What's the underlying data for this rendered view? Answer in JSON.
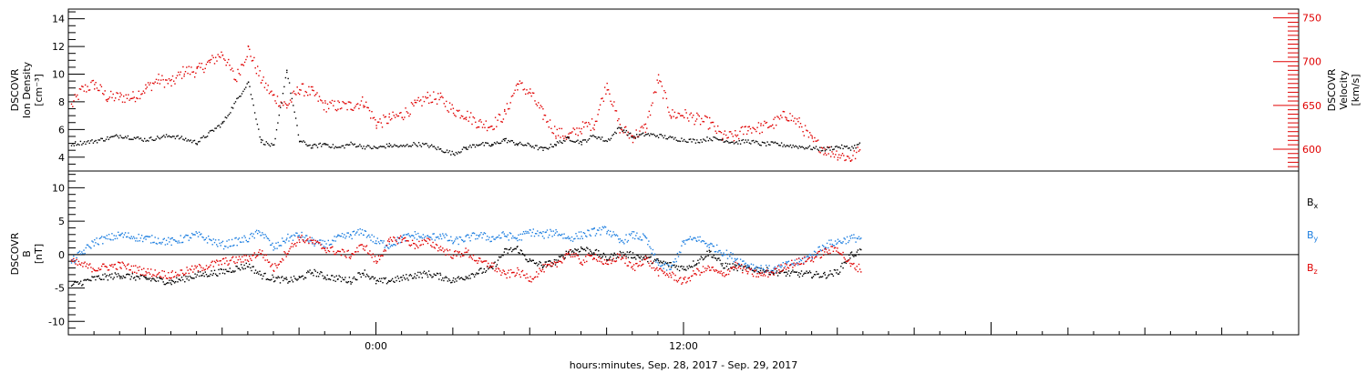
{
  "chart_data": [
    {
      "type": "scatter",
      "panel": "top",
      "ylabel_left": [
        "DSCOVR",
        "Ion Density",
        "[cm⁻³]"
      ],
      "ylabel_right": [
        "DSCOVR",
        "Velocity",
        "[km/s]"
      ],
      "xlim_hours": [
        -12,
        36
      ],
      "ylim_left": [
        3,
        14.7
      ],
      "ylim_right": [
        575,
        760
      ],
      "yticks_left": [
        4,
        6,
        8,
        10,
        12,
        14
      ],
      "yticks_right": [
        600,
        650,
        700,
        750
      ],
      "series": [
        {
          "axis": "left",
          "color": "#000000",
          "x": [
            -11.9,
            -11,
            -10,
            -9,
            -8,
            -7,
            -6,
            -5,
            -4.5,
            -4,
            -3.5,
            -3,
            -2.5,
            -2,
            -1.5,
            -1,
            -0.5,
            0,
            0.5,
            1,
            1.5,
            2,
            2.5,
            3,
            3.5,
            4,
            4.5,
            5,
            5.5,
            6,
            6.5,
            7,
            7.5,
            8,
            8.5,
            9,
            9.5,
            10,
            10.5,
            11,
            11.5,
            12,
            12.5,
            13,
            13.5,
            14,
            14.5,
            15,
            15.5,
            16,
            16.5,
            17,
            17.5,
            18,
            18.5,
            18.9
          ],
          "y": [
            5.0,
            5.2,
            5.6,
            5.3,
            5.6,
            5.1,
            6.5,
            9.5,
            5.2,
            4.8,
            10.3,
            5.2,
            4.8,
            5.0,
            4.7,
            5.0,
            4.8,
            4.7,
            4.9,
            4.8,
            5.0,
            4.9,
            4.6,
            4.3,
            4.7,
            5.0,
            4.9,
            5.3,
            5.0,
            4.9,
            4.6,
            5.0,
            5.4,
            5.1,
            5.6,
            5.2,
            6.2,
            5.5,
            5.7,
            5.6,
            5.4,
            5.3,
            5.2,
            5.4,
            5.3,
            5.1,
            5.2,
            5.0,
            5.0,
            4.9,
            4.8,
            4.7,
            4.6,
            4.8,
            4.7,
            5.0
          ]
        },
        {
          "axis": "right",
          "color": "#e00000",
          "x": [
            -11.9,
            -11.5,
            -11,
            -10.5,
            -10,
            -9.5,
            -9,
            -8.5,
            -8,
            -7.5,
            -7,
            -6.5,
            -6,
            -5.5,
            -5,
            -4.5,
            -4,
            -3.5,
            -3,
            -2.5,
            -2,
            -1.5,
            -1,
            -0.5,
            0,
            0.5,
            1,
            1.5,
            2,
            2.5,
            3,
            3.5,
            4,
            4.5,
            5,
            5.5,
            6,
            6.5,
            7,
            7.5,
            8,
            8.5,
            9,
            9.5,
            10,
            10.5,
            11,
            11.5,
            12,
            12.5,
            13,
            13.5,
            14,
            14.5,
            15,
            15.5,
            16,
            16.5,
            17,
            17.5,
            18,
            18.5,
            18.9
          ],
          "y": [
            650,
            668,
            675,
            660,
            660,
            660,
            670,
            680,
            676,
            690,
            690,
            700,
            710,
            680,
            715,
            680,
            660,
            650,
            670,
            665,
            650,
            650,
            650,
            655,
            630,
            635,
            640,
            650,
            660,
            658,
            645,
            640,
            630,
            628,
            640,
            675,
            665,
            640,
            620,
            615,
            625,
            630,
            675,
            625,
            615,
            625,
            680,
            640,
            640,
            635,
            630,
            615,
            615,
            625,
            625,
            630,
            640,
            630,
            610,
            600,
            595,
            590,
            600
          ]
        }
      ]
    },
    {
      "type": "scatter",
      "panel": "bottom",
      "ylabel_left": [
        "DSCOVR",
        "B",
        "[nT]"
      ],
      "xlim_hours": [
        -12,
        36
      ],
      "ylim": [
        -12,
        12.5
      ],
      "yticks": [
        -10,
        -5,
        0,
        5,
        10
      ],
      "xticks": [
        {
          "hour": 0,
          "label": "0:00"
        },
        {
          "hour": 12,
          "label": "12:00"
        }
      ],
      "xlabel": "hours:minutes, Sep. 28, 2017 - Sep. 29, 2017",
      "series": [
        {
          "name": "Bx",
          "color": "#000000",
          "x": [
            -11.9,
            -11,
            -10,
            -9,
            -8,
            -7,
            -6,
            -5,
            -4.5,
            -4,
            -3.5,
            -3,
            -2.5,
            -2,
            -1.5,
            -1,
            -0.5,
            0,
            0.5,
            1,
            1.5,
            2,
            2.5,
            3,
            3.5,
            4,
            4.5,
            5,
            5.5,
            6,
            6.5,
            7,
            7.5,
            8,
            8.5,
            9,
            9.5,
            10,
            10.5,
            11,
            11.5,
            12,
            12.5,
            13,
            13.5,
            14,
            14.5,
            15,
            15.5,
            16,
            16.5,
            17,
            17.5,
            18,
            18.5,
            18.9
          ],
          "y": [
            -4.5,
            -3.5,
            -3.0,
            -3.5,
            -4.0,
            -3.0,
            -2.5,
            -1.5,
            -3.0,
            -3.5,
            -3.8,
            -3.5,
            -2.5,
            -3.2,
            -3.5,
            -3.8,
            -2.5,
            -4.0,
            -3.8,
            -3.5,
            -3.0,
            -2.8,
            -3.2,
            -3.8,
            -3.2,
            -2.5,
            -2.0,
            0.5,
            1.0,
            -1.0,
            -1.5,
            -1.0,
            0.5,
            1.0,
            0.5,
            -0.5,
            0.2,
            0.0,
            -0.5,
            -1.0,
            -1.5,
            -2.0,
            -1.0,
            0.5,
            -1.5,
            -1.8,
            -2.0,
            -2.2,
            -2.5,
            -2.7,
            -2.8,
            -2.9,
            -3.0,
            -2.5,
            0.0,
            0.6
          ]
        },
        {
          "name": "By",
          "color": "#1e7fe0",
          "x": [
            -11.9,
            -11,
            -10,
            -9,
            -8,
            -7,
            -6,
            -5,
            -4.5,
            -4,
            -3.5,
            -3,
            -2.5,
            -2,
            -1.5,
            -1,
            -0.5,
            0,
            0.5,
            1,
            1.5,
            2,
            2.5,
            3,
            3.5,
            4,
            4.5,
            5,
            5.5,
            6,
            6.5,
            7,
            7.5,
            8,
            8.5,
            9,
            9.5,
            10,
            10.5,
            11,
            11.5,
            12,
            12.5,
            13,
            13.5,
            14,
            14.5,
            15,
            15.5,
            16,
            16.5,
            17,
            17.5,
            18,
            18.5,
            18.9
          ],
          "y": [
            -1.0,
            2.0,
            3.0,
            2.5,
            2.0,
            3.0,
            1.5,
            2.5,
            3.5,
            1.0,
            2.5,
            3.0,
            2.0,
            1.5,
            2.5,
            3.0,
            3.5,
            2.0,
            1.5,
            2.5,
            3.0,
            2.5,
            3.0,
            2.0,
            2.5,
            3.0,
            2.5,
            3.0,
            2.5,
            3.5,
            3.0,
            3.5,
            2.5,
            3.0,
            3.5,
            3.8,
            2.0,
            3.0,
            2.5,
            -1.5,
            -2.0,
            2.0,
            2.5,
            1.5,
            0.5,
            -0.5,
            -1.5,
            -2.0,
            -2.2,
            -1.5,
            -1.0,
            0.0,
            1.5,
            2.0,
            2.5,
            2.6
          ]
        },
        {
          "name": "Bz",
          "color": "#e00000",
          "x": [
            -11.9,
            -11,
            -10,
            -9,
            -8,
            -7,
            -6,
            -5,
            -4.5,
            -4,
            -3.5,
            -3,
            -2.5,
            -2,
            -1.5,
            -1,
            -0.5,
            0,
            0.5,
            1,
            1.5,
            2,
            2.5,
            3,
            3.5,
            4,
            4.5,
            5,
            5.5,
            6,
            6.5,
            7,
            7.5,
            8,
            8.5,
            9,
            9.5,
            10,
            10.5,
            11,
            11.5,
            12,
            12.5,
            13,
            13.5,
            14,
            14.5,
            15,
            15.5,
            16,
            16.5,
            17,
            17.5,
            18,
            18.5,
            18.9
          ],
          "y": [
            -1.0,
            -2.0,
            -1.5,
            -2.5,
            -3.0,
            -2.0,
            -1.0,
            -0.5,
            0.5,
            -2.0,
            0.5,
            2.5,
            2.0,
            1.0,
            0.5,
            0.0,
            1.5,
            -1.0,
            2.0,
            2.5,
            1.5,
            2.0,
            1.0,
            0.0,
            0.5,
            -1.0,
            -1.5,
            -3.0,
            -2.5,
            -3.5,
            -2.0,
            -1.5,
            0.5,
            -1.0,
            0.0,
            -1.5,
            0.0,
            -2.0,
            -0.5,
            -2.5,
            -3.0,
            -4.0,
            -2.5,
            -2.0,
            -3.0,
            -1.5,
            -2.5,
            -3.0,
            -2.5,
            -1.5,
            -1.0,
            -0.5,
            0.5,
            1.0,
            -1.5,
            -2.0
          ]
        }
      ],
      "legend_labels": [
        "Bx",
        "By",
        "Bz"
      ]
    }
  ]
}
